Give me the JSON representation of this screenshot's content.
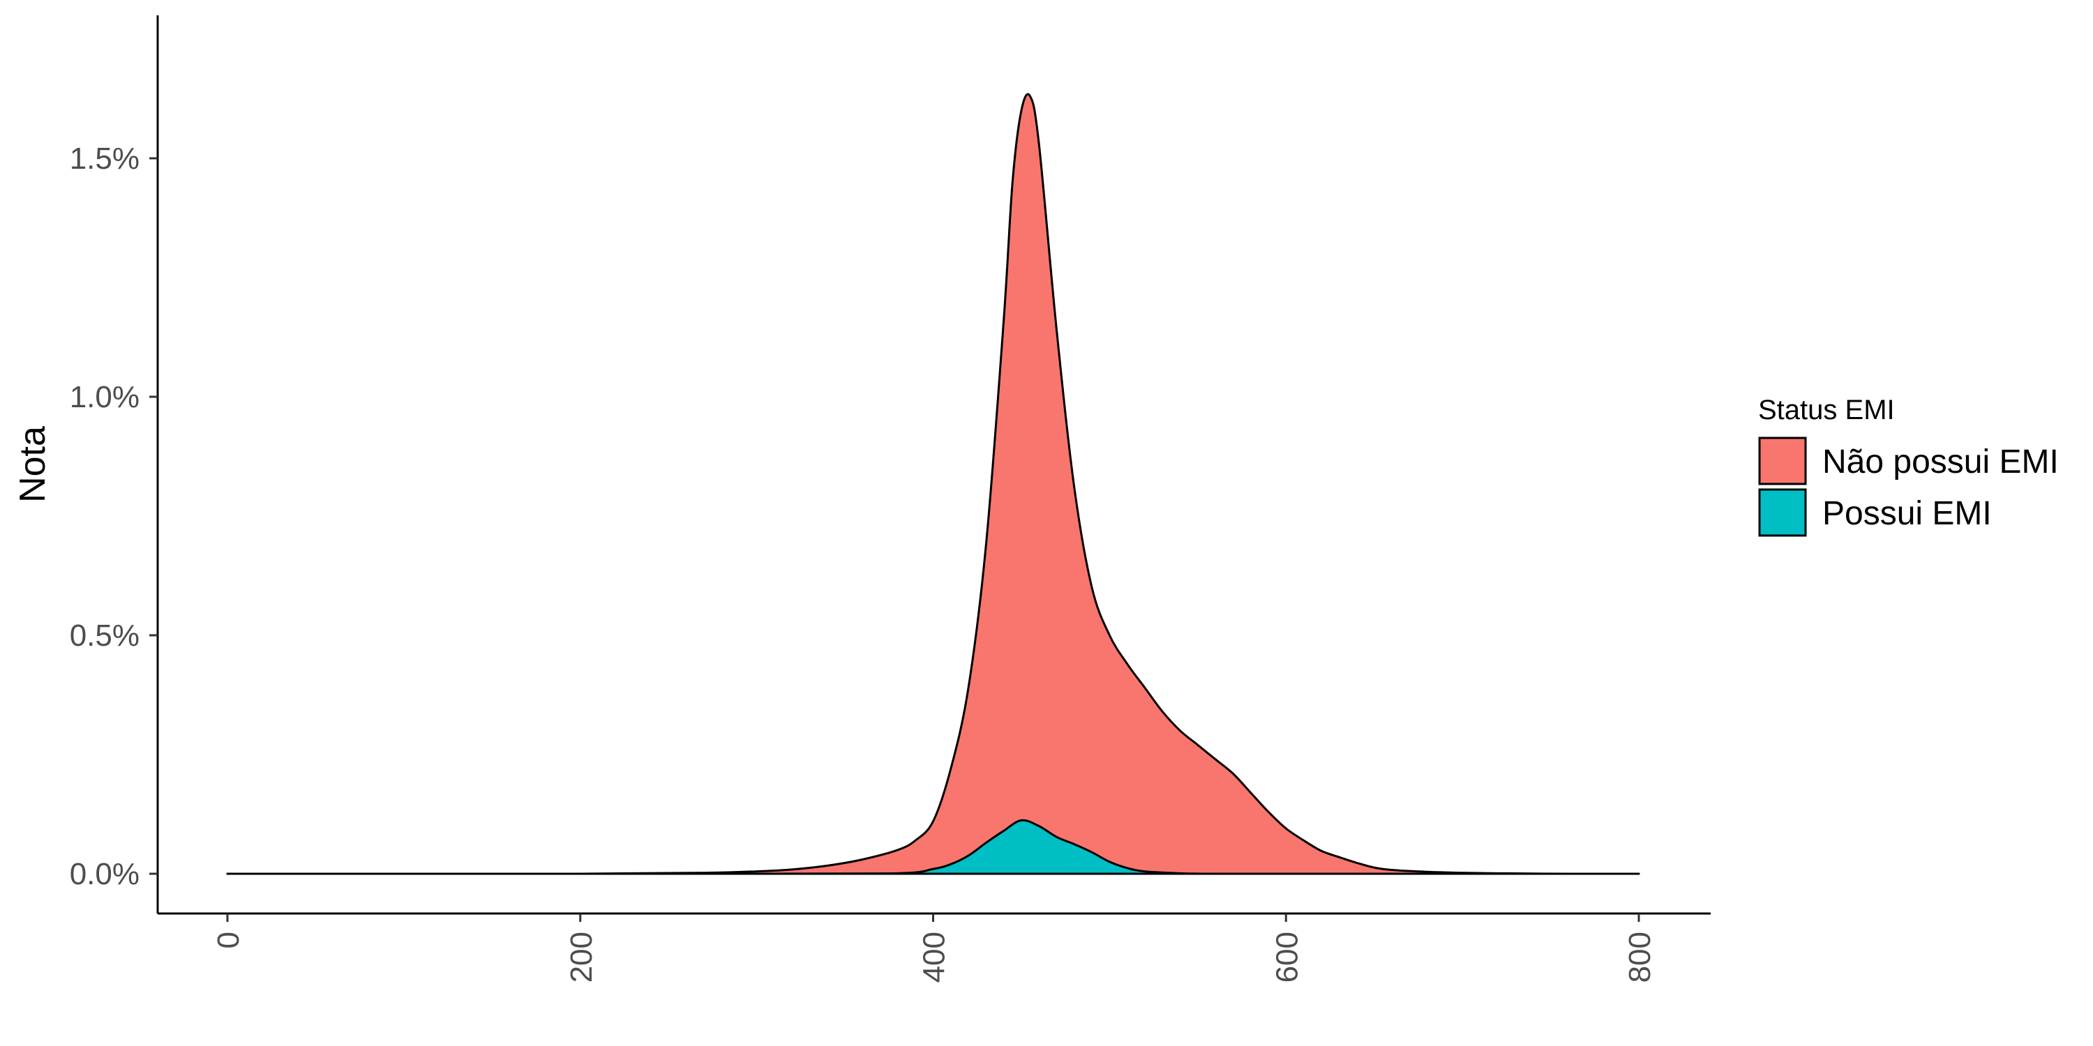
{
  "chart_data": {
    "type": "area",
    "title": "",
    "xlabel": "",
    "ylabel": "Nota",
    "xlim": [
      0,
      800
    ],
    "ylim": [
      0,
      0.0175
    ],
    "x_ticks": [
      0,
      200,
      400,
      600,
      800
    ],
    "x_tick_labels": [
      "0",
      "200",
      "400",
      "600",
      "800"
    ],
    "y_ticks": [
      0,
      0.005,
      0.01,
      0.015
    ],
    "y_tick_labels": [
      "0.0%",
      "0.5%",
      "1.0%",
      "1.5%"
    ],
    "grid": false,
    "stacked": true,
    "legend": {
      "title": "Status EMI",
      "position": "right"
    },
    "series": [
      {
        "name": "Não possui EMI",
        "color": "#F8766D",
        "x": [
          0,
          100,
          200,
          270,
          300,
          320,
          340,
          360,
          380,
          390,
          400,
          410,
          420,
          430,
          440,
          445,
          450,
          455,
          460,
          470,
          480,
          490,
          500,
          510,
          520,
          530,
          540,
          550,
          560,
          570,
          580,
          590,
          600,
          610,
          620,
          630,
          640,
          650,
          660,
          680,
          700,
          720,
          760,
          800
        ],
        "values": [
          0,
          0,
          0,
          2e-05,
          5e-05,
          9e-05,
          0.00017,
          0.0003,
          0.0005,
          0.0007,
          0.0011,
          0.0022,
          0.0039,
          0.0069,
          0.0116,
          0.0145,
          0.016,
          0.0163,
          0.0153,
          0.0114,
          0.0081,
          0.006,
          0.005,
          0.0044,
          0.0039,
          0.0034,
          0.003,
          0.0027,
          0.0024,
          0.0021,
          0.0017,
          0.0013,
          0.00095,
          0.0007,
          0.00048,
          0.00035,
          0.00023,
          0.00013,
          8e-05,
          4e-05,
          2e-05,
          1e-05,
          0,
          0
        ]
      },
      {
        "name": "Possui EMI",
        "color": "#00BFC4",
        "x": [
          0,
          300,
          380,
          400,
          410,
          420,
          430,
          440,
          450,
          460,
          470,
          480,
          490,
          500,
          510,
          520,
          540,
          560,
          600,
          800
        ],
        "values": [
          0,
          0,
          1e-05,
          0.0001,
          0.0002,
          0.00038,
          0.00065,
          0.0009,
          0.00112,
          0.001,
          0.00077,
          0.00062,
          0.00045,
          0.00025,
          0.00012,
          5e-05,
          1e-05,
          0,
          0,
          0
        ]
      }
    ]
  }
}
